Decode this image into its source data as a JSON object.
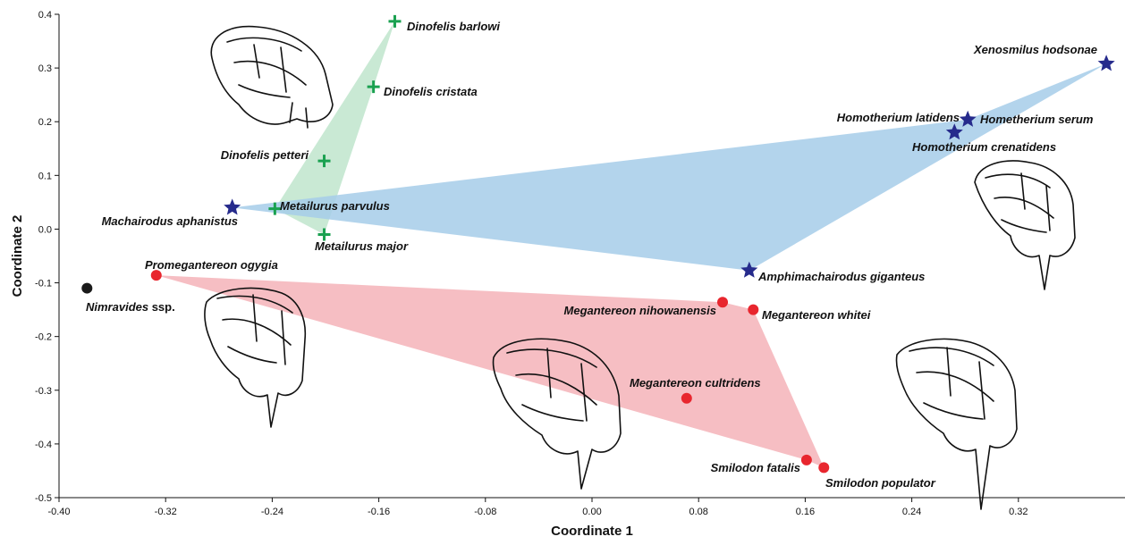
{
  "chart_data": {
    "type": "scatter",
    "xlabel": "Coordinate 1",
    "ylabel": "Coordinate 2",
    "xlim": [
      -0.4,
      0.4
    ],
    "ylim": [
      -0.5,
      0.4
    ],
    "xticks": [
      "-0.40",
      "-0.32",
      "-0.24",
      "-0.16",
      "-0.08",
      "0.00",
      "0.08",
      "0.16",
      "0.24",
      "0.32"
    ],
    "yticks": [
      "-0.5",
      "-0.4",
      "-0.3",
      "-0.2",
      "-0.1",
      "0.0",
      "0.1",
      "0.2",
      "0.3",
      "0.4"
    ],
    "grid": false,
    "groups": [
      {
        "marker": "plus",
        "color": "#1aa150",
        "hull_color": "#bfe5cc",
        "points": [
          {
            "label": "Dinofelis barlowi",
            "x": -0.148,
            "y": 0.387
          },
          {
            "label": "Dinofelis cristata",
            "x": -0.164,
            "y": 0.265
          },
          {
            "label": "Dinofelis petteri",
            "x": -0.201,
            "y": 0.127
          },
          {
            "label": "Metailurus parvulus",
            "x": -0.238,
            "y": 0.038
          },
          {
            "label": "Metailurus major",
            "x": -0.201,
            "y": -0.01
          }
        ]
      },
      {
        "marker": "star",
        "color": "#262b8c",
        "hull_color": "#a6cde9",
        "points": [
          {
            "label": "Xenosmilus hodsonae",
            "x": 0.386,
            "y": 0.308
          },
          {
            "label": "Homotherium latidens",
            "x": 0.282,
            "y": 0.204
          },
          {
            "label": "Hometherium serum",
            "x": 0.282,
            "y": 0.204
          },
          {
            "label": "Homotherium crenatidens",
            "x": 0.272,
            "y": 0.18
          },
          {
            "label": "Machairodus aphanistus",
            "x": -0.27,
            "y": 0.04
          },
          {
            "label": "Amphimachairodus giganteus",
            "x": 0.118,
            "y": -0.077
          }
        ]
      },
      {
        "marker": "circle",
        "color": "#e8262e",
        "hull_color": "#f5b3b8",
        "points": [
          {
            "label": "Promegantereon ogygia",
            "x": -0.327,
            "y": -0.086
          },
          {
            "label": "Megantereon nihowanensis",
            "x": 0.098,
            "y": -0.136
          },
          {
            "label": "Megantereon whitei",
            "x": 0.121,
            "y": -0.15
          },
          {
            "label": "Megantereon cultridens",
            "x": 0.071,
            "y": -0.315
          },
          {
            "label": "Smilodon fatalis",
            "x": 0.161,
            "y": -0.43
          },
          {
            "label": "Smilodon populator",
            "x": 0.174,
            "y": -0.444
          }
        ]
      },
      {
        "marker": "circle",
        "color": "#1a1a1a",
        "hull_color": "",
        "points": [
          {
            "label": "Nimravides ssp.",
            "x": -0.379,
            "y": -0.11
          }
        ]
      }
    ],
    "hulls": [
      {
        "group": 0,
        "order": [
          "Dinofelis barlowi",
          "Dinofelis cristata",
          "Metailurus major",
          "Metailurus parvulus"
        ]
      },
      {
        "group": 1,
        "order": [
          "Xenosmilus hodsonae",
          "Homotherium latidens",
          "Machairodus aphanistus",
          "Amphimachairodus giganteus"
        ]
      },
      {
        "group": 2,
        "order": [
          "Promegantereon ogygia",
          "Megantereon nihowanensis",
          "Megantereon whitei",
          "Smilodon populator",
          "Smilodon fatalis"
        ]
      }
    ],
    "illustrations": [
      "skull-drawing",
      "skull-drawing",
      "skull-drawing",
      "skull-drawing",
      "skull-drawing"
    ]
  }
}
